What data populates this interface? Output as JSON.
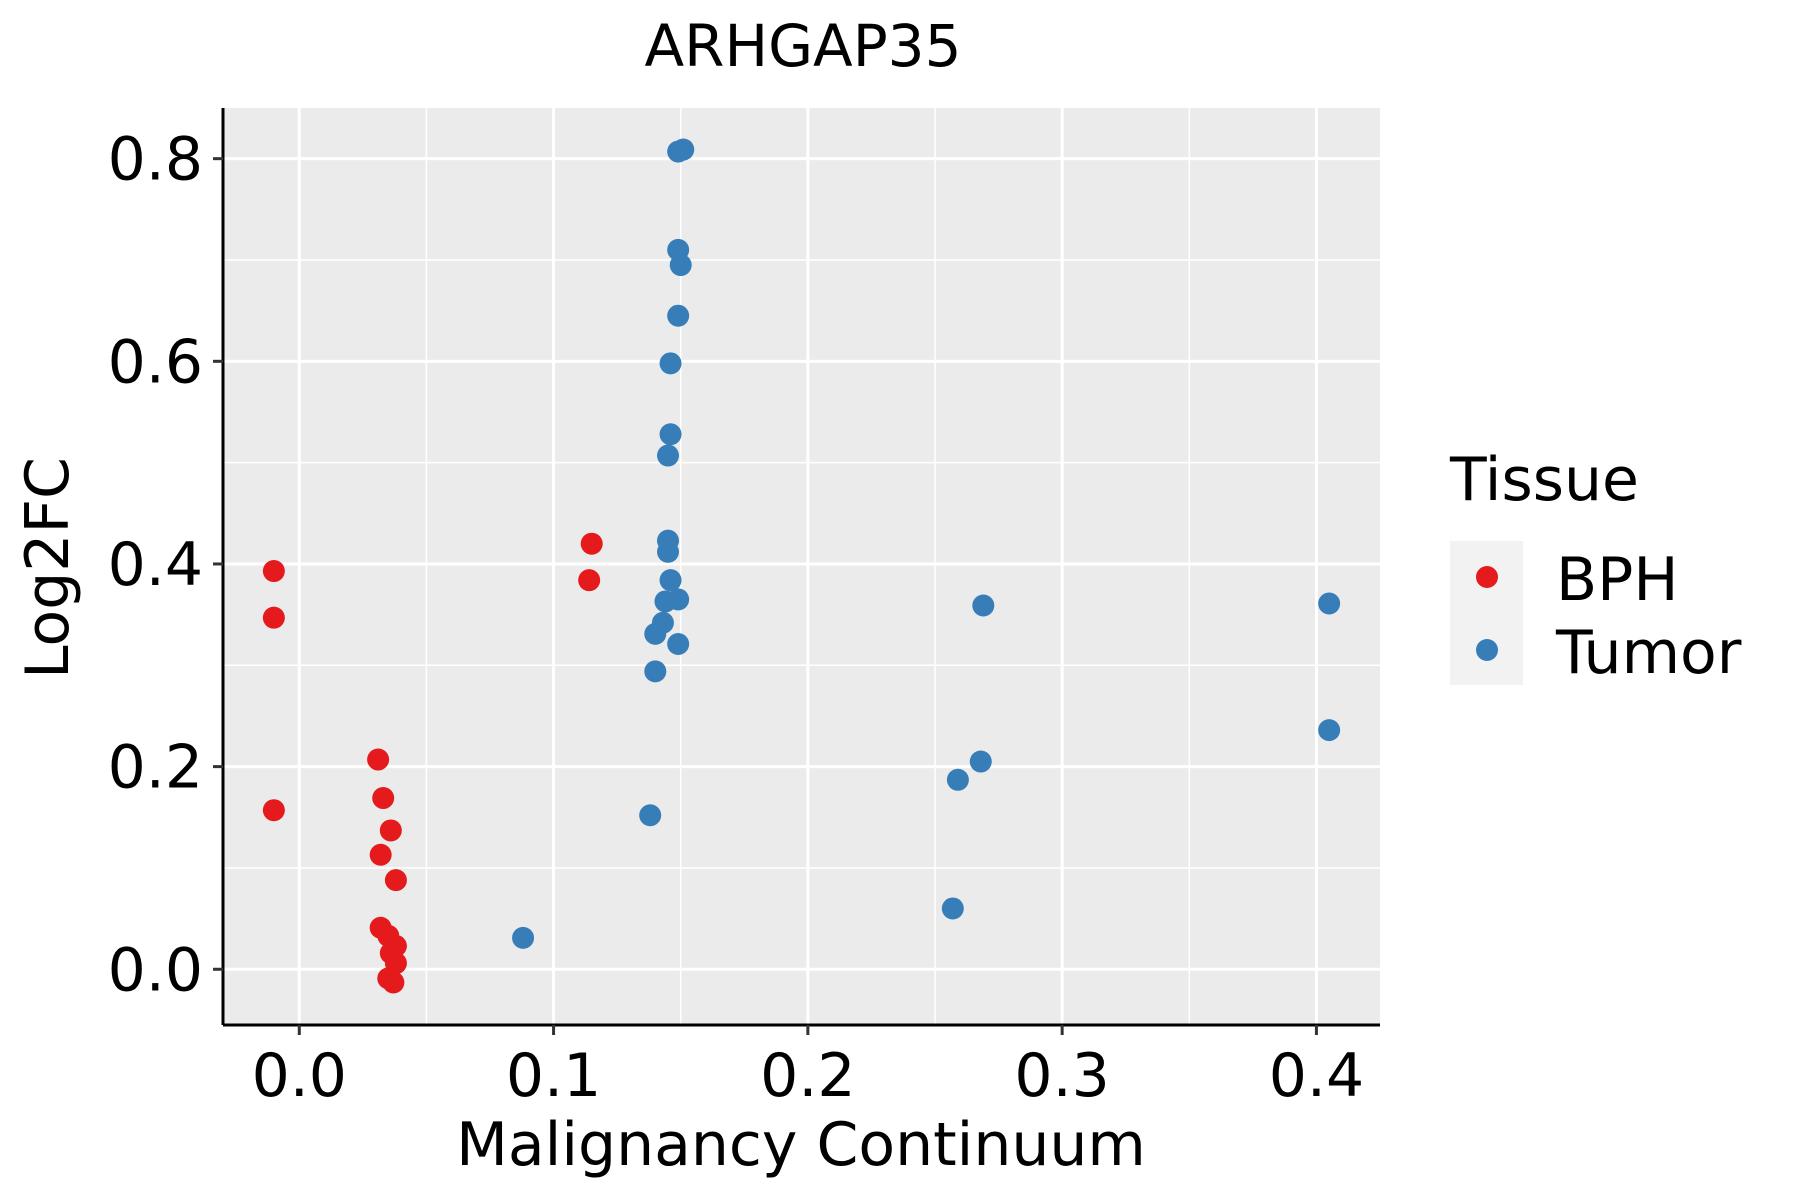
{
  "chart_data": {
    "type": "scatter",
    "title": "ARHGAP35",
    "xlabel": "Malignancy Continuum",
    "ylabel": "Log2FC",
    "xlim": [
      -0.03,
      0.425
    ],
    "ylim": [
      -0.055,
      0.85
    ],
    "x_ticks": [
      0.0,
      0.1,
      0.2,
      0.3,
      0.4
    ],
    "x_tick_labels": [
      "0.0",
      "0.1",
      "0.2",
      "0.3",
      "0.4"
    ],
    "y_ticks": [
      0.0,
      0.2,
      0.4,
      0.6,
      0.8
    ],
    "y_tick_labels": [
      "0.0",
      "0.2",
      "0.4",
      "0.6",
      "0.8"
    ],
    "grid": true,
    "legend": {
      "title": "Tissue",
      "position": "right",
      "entries": [
        "BPH",
        "Tumor"
      ]
    },
    "series": [
      {
        "name": "BPH",
        "color": "#E41A1C",
        "points": [
          [
            -0.01,
            0.393
          ],
          [
            -0.01,
            0.347
          ],
          [
            -0.01,
            0.157
          ],
          [
            0.031,
            0.207
          ],
          [
            0.033,
            0.169
          ],
          [
            0.036,
            0.137
          ],
          [
            0.032,
            0.113
          ],
          [
            0.038,
            0.088
          ],
          [
            0.032,
            0.041
          ],
          [
            0.035,
            0.033
          ],
          [
            0.038,
            0.023
          ],
          [
            0.036,
            0.016
          ],
          [
            0.038,
            0.006
          ],
          [
            0.035,
            -0.009
          ],
          [
            0.037,
            -0.013
          ],
          [
            0.114,
            0.384
          ],
          [
            0.115,
            0.42
          ]
        ]
      },
      {
        "name": "Tumor",
        "color": "#377EB8",
        "points": [
          [
            0.088,
            0.031
          ],
          [
            0.138,
            0.152
          ],
          [
            0.14,
            0.294
          ],
          [
            0.14,
            0.331
          ],
          [
            0.143,
            0.342
          ],
          [
            0.144,
            0.363
          ],
          [
            0.149,
            0.365
          ],
          [
            0.149,
            0.321
          ],
          [
            0.146,
            0.384
          ],
          [
            0.145,
            0.412
          ],
          [
            0.145,
            0.423
          ],
          [
            0.145,
            0.507
          ],
          [
            0.146,
            0.528
          ],
          [
            0.146,
            0.598
          ],
          [
            0.149,
            0.645
          ],
          [
            0.15,
            0.695
          ],
          [
            0.149,
            0.71
          ],
          [
            0.149,
            0.807
          ],
          [
            0.151,
            0.809
          ],
          [
            0.257,
            0.06
          ],
          [
            0.259,
            0.187
          ],
          [
            0.268,
            0.205
          ],
          [
            0.269,
            0.359
          ],
          [
            0.405,
            0.236
          ],
          [
            0.405,
            0.361
          ]
        ]
      }
    ]
  }
}
